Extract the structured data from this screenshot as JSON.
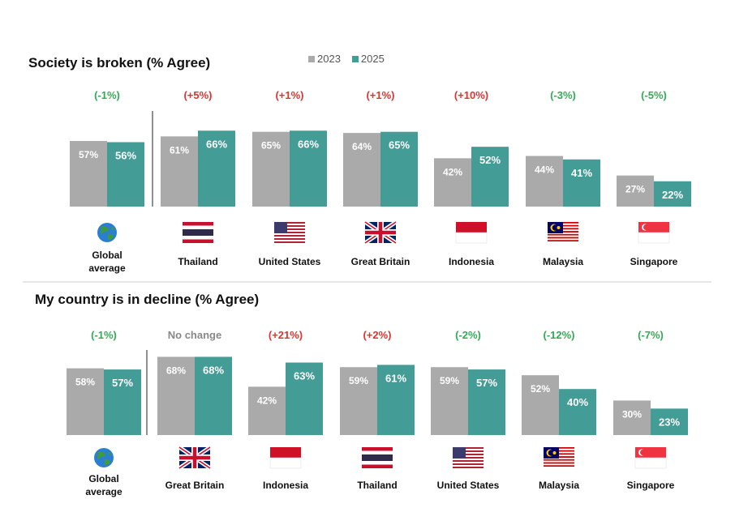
{
  "legend": [
    {
      "label": "2023",
      "color": "#aaaaaa"
    },
    {
      "label": "2025",
      "color": "#449c97"
    }
  ],
  "colors": {
    "positive": "#dd3333",
    "negative": "#33aa55",
    "neutral": "#888888"
  },
  "chart_data": [
    {
      "type": "bar",
      "title": "Society is broken (% Agree)",
      "categories": [
        "Global average",
        "Thailand",
        "United States",
        "Great Britain",
        "Indonesia",
        "Malaysia",
        "Singapore"
      ],
      "flags": [
        "globe-icon",
        "flag-thailand-icon",
        "flag-us-icon",
        "flag-gb-icon",
        "flag-indonesia-icon",
        "flag-malaysia-icon",
        "flag-singapore-icon"
      ],
      "changes": [
        {
          "text": "(-1%)",
          "tone": "negative"
        },
        {
          "text": "(+5%)",
          "tone": "positive"
        },
        {
          "text": "(+1%)",
          "tone": "positive"
        },
        {
          "text": "(+1%)",
          "tone": "positive"
        },
        {
          "text": "(+10%)",
          "tone": "positive"
        },
        {
          "text": "(-3%)",
          "tone": "negative"
        },
        {
          "text": "(-5%)",
          "tone": "negative"
        }
      ],
      "series": [
        {
          "name": "2023",
          "values": [
            57,
            61,
            65,
            64,
            42,
            44,
            27
          ]
        },
        {
          "name": "2025",
          "values": [
            56,
            66,
            66,
            65,
            52,
            41,
            22
          ]
        }
      ],
      "ylim": [
        0,
        70
      ]
    },
    {
      "type": "bar",
      "title": "My country is in decline (% Agree)",
      "categories": [
        "Global average",
        "Great Britain",
        "Indonesia",
        "Thailand",
        "United States",
        "Malaysia",
        "Singapore"
      ],
      "flags": [
        "globe-icon",
        "flag-gb-icon",
        "flag-indonesia-icon",
        "flag-thailand-icon",
        "flag-us-icon",
        "flag-malaysia-icon",
        "flag-singapore-icon"
      ],
      "changes": [
        {
          "text": "(-1%)",
          "tone": "negative"
        },
        {
          "text": "No change",
          "tone": "neutral"
        },
        {
          "text": "(+21%)",
          "tone": "positive"
        },
        {
          "text": "(+2%)",
          "tone": "positive"
        },
        {
          "text": "(-2%)",
          "tone": "negative"
        },
        {
          "text": "(-12%)",
          "tone": "negative"
        },
        {
          "text": "(-7%)",
          "tone": "negative"
        }
      ],
      "series": [
        {
          "name": "2023",
          "values": [
            58,
            68,
            42,
            59,
            59,
            52,
            30
          ]
        },
        {
          "name": "2025",
          "values": [
            57,
            68,
            63,
            61,
            57,
            40,
            23
          ]
        }
      ],
      "ylim": [
        0,
        70
      ]
    }
  ]
}
